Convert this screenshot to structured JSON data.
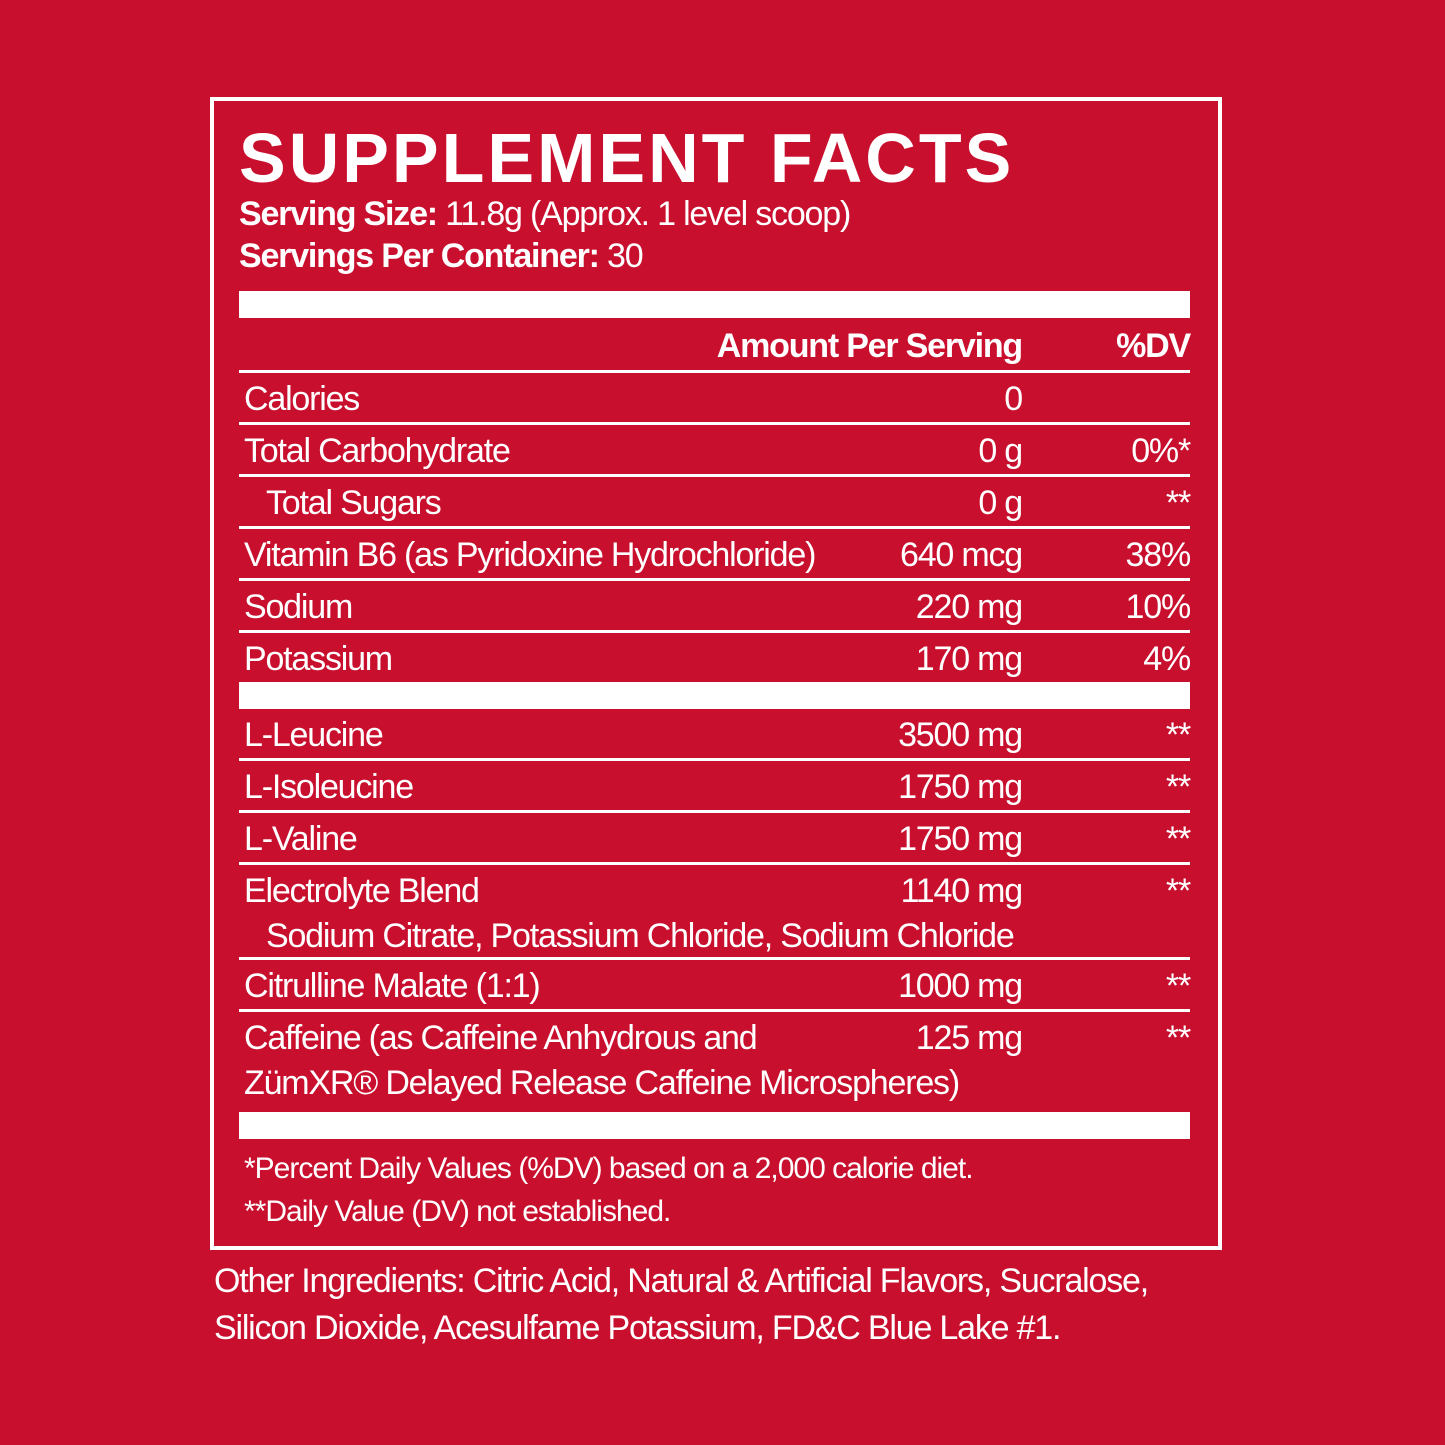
{
  "title": "SUPPLEMENT FACTS",
  "serving_size": {
    "label": "Serving Size:",
    "value": "11.8g (Approx. 1 level scoop)"
  },
  "servings_per_container": {
    "label": "Servings Per Container:",
    "value": "30"
  },
  "header": {
    "amount": "Amount Per Serving",
    "dv": "%DV"
  },
  "rows": [
    {
      "name": "Calories",
      "amount": "0"
    },
    {
      "name": "Total Carbohydrate",
      "amount": "0 g",
      "dv": "0%*"
    },
    {
      "name": "Total Sugars",
      "amount": "0 g",
      "dv": "**",
      "indent": true
    },
    {
      "name": "Vitamin B6 (as Pyridoxine Hydrochloride)",
      "amount": "640 mcg",
      "dv": "38%"
    },
    {
      "name": "Sodium",
      "amount": "220 mg",
      "dv": "10%"
    },
    {
      "name": "Potassium",
      "amount": "170 mg",
      "dv": "4%"
    }
  ],
  "ingredients": [
    {
      "name": "L-Leucine",
      "amount": "3500 mg",
      "dv": "**"
    },
    {
      "name": "L-Isoleucine",
      "amount": "1750 mg",
      "dv": "**"
    },
    {
      "name": "L-Valine",
      "amount": "1750 mg",
      "dv": "**"
    },
    {
      "name": "Electrolyte Blend",
      "amount": "1140 mg",
      "dv": "**",
      "sub": "Sodium Citrate, Potassium Chloride, Sodium Chloride"
    },
    {
      "name": "Citrulline Malate (1:1)",
      "amount": "1000 mg",
      "dv": "**"
    },
    {
      "name": "Caffeine (as Caffeine Anhydrous and",
      "amount": "125 mg",
      "dv": "**",
      "sub": "ZümXR® Delayed Release Caffeine Microspheres)"
    }
  ],
  "footnotes": [
    "*Percent Daily Values (%DV) based on a 2,000 calorie diet.",
    "**Daily Value (DV) not established."
  ],
  "other_ingredients": "Other Ingredients: Citric Acid, Natural & Artificial Flavors, Sucralose, Silicon Dioxide, Acesulfame Potassium, FD&C Blue Lake #1."
}
